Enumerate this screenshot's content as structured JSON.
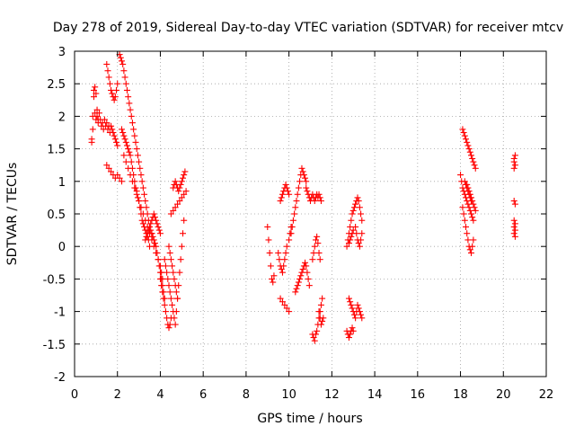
{
  "chart_data": {
    "type": "scatter",
    "title": "Day 278 of 2019, Sidereal Day-to-day VTEC variation (SDTVAR) for receiver mtcv",
    "xlabel": "GPS time / hours",
    "ylabel": "SDTVAR / TECUs",
    "xlim": [
      0,
      22
    ],
    "ylim": [
      -2,
      3
    ],
    "xticks": [
      "0",
      "2",
      "4",
      "6",
      "8",
      "10",
      "12",
      "14",
      "16",
      "18",
      "20",
      "22"
    ],
    "yticks": [
      "3",
      "2.5",
      "2",
      "1.5",
      "1",
      "0.5",
      "0",
      "-0.5",
      "-1",
      "-1.5",
      "-2"
    ],
    "grid": true,
    "marker": "plus",
    "marker_color": "#ff0000",
    "series": [
      {
        "name": "SDTVAR",
        "x": [
          0.8,
          0.85,
          0.9,
          0.95,
          1.0,
          1.05,
          1.1,
          1.15,
          1.2,
          1.25,
          1.3,
          1.35,
          1.4,
          1.45,
          1.5,
          1.55,
          1.6,
          1.65,
          1.7,
          1.75,
          1.8,
          1.85,
          1.9,
          1.95,
          2.0,
          0.8,
          0.85,
          0.9,
          0.95,
          1.0,
          1.05,
          1.1,
          1.5,
          1.55,
          1.6,
          1.65,
          1.7,
          1.75,
          1.8,
          1.85,
          1.9,
          1.95,
          2.0,
          1.5,
          1.6,
          1.7,
          1.8,
          1.9,
          2.0,
          2.1,
          2.2,
          2.1,
          2.15,
          2.2,
          2.25,
          2.3,
          2.35,
          2.4,
          2.45,
          2.5,
          2.55,
          2.6,
          2.65,
          2.7,
          2.75,
          2.8,
          2.85,
          2.9,
          2.95,
          3.0,
          3.05,
          3.1,
          3.15,
          3.2,
          3.25,
          3.3,
          3.35,
          3.4,
          3.45,
          3.5,
          3.55,
          3.6,
          2.2,
          2.25,
          2.3,
          2.35,
          2.4,
          2.45,
          2.5,
          2.55,
          2.6,
          2.65,
          2.7,
          2.75,
          2.8,
          2.85,
          2.9,
          2.95,
          3.0,
          3.05,
          3.1,
          3.15,
          3.2,
          3.25,
          3.3,
          3.35,
          3.4,
          3.45,
          3.5,
          2.3,
          2.4,
          2.5,
          2.6,
          2.7,
          2.8,
          2.9,
          3.0,
          3.1,
          3.2,
          3.3,
          3.4,
          3.5,
          3.6,
          3.7,
          3.8,
          3.9,
          4.0,
          4.05,
          4.1,
          3.3,
          3.35,
          3.4,
          3.45,
          3.5,
          3.55,
          3.6,
          3.65,
          3.7,
          3.75,
          3.8,
          3.85,
          3.9,
          3.95,
          4.0,
          3.6,
          3.65,
          3.7,
          3.75,
          3.8,
          3.85,
          3.9,
          3.95,
          4.0,
          4.05,
          4.1,
          4.15,
          4.2,
          4.0,
          4.05,
          4.1,
          4.15,
          4.2,
          4.25,
          4.3,
          4.35,
          4.4,
          4.45,
          4.5,
          4.2,
          4.25,
          4.3,
          4.35,
          4.4,
          4.45,
          4.5,
          4.55,
          4.6,
          4.65,
          4.7,
          4.75,
          4.8,
          4.4,
          4.45,
          4.5,
          4.55,
          4.6,
          4.65,
          4.7,
          4.75,
          4.8,
          4.85,
          4.9,
          4.95,
          5.0,
          5.05,
          5.1,
          4.6,
          4.65,
          4.7,
          4.75,
          4.8,
          4.85,
          4.9,
          4.95,
          5.0,
          5.05,
          5.1,
          5.15,
          4.5,
          4.6,
          4.7,
          4.8,
          4.9,
          5.0,
          5.1,
          5.2,
          9.0,
          9.05,
          9.1,
          9.15,
          9.2,
          9.25,
          9.3,
          9.6,
          9.65,
          9.7,
          9.75,
          9.8,
          9.85,
          9.9,
          9.95,
          10.0,
          9.5,
          9.55,
          9.6,
          9.65,
          9.7,
          9.75,
          9.8,
          9.85,
          9.9,
          10.0,
          10.05,
          10.1,
          9.6,
          9.7,
          9.8,
          9.9,
          10.0,
          10.1,
          10.15,
          10.2,
          10.25,
          10.3,
          10.35,
          10.4,
          10.45,
          10.5,
          10.55,
          10.6,
          10.65,
          10.7,
          10.75,
          10.8,
          10.3,
          10.35,
          10.4,
          10.45,
          10.5,
          10.55,
          10.6,
          10.65,
          10.7,
          10.75,
          10.8,
          10.85,
          10.9,
          10.95,
          10.8,
          10.85,
          10.9,
          10.95,
          11.0,
          11.05,
          11.1,
          11.15,
          11.2,
          11.25,
          11.3,
          11.35,
          11.4,
          11.45,
          11.5,
          11.1,
          11.15,
          11.2,
          11.25,
          11.3,
          11.35,
          11.4,
          11.45,
          11.5,
          11.55,
          11.1,
          11.15,
          11.2,
          11.25,
          11.3,
          11.35,
          11.4,
          11.45,
          11.4,
          11.45,
          11.5,
          11.55,
          11.6,
          12.7,
          12.75,
          12.8,
          12.85,
          12.9,
          12.95,
          13.0,
          13.05,
          13.1,
          13.15,
          13.2,
          13.25,
          13.3,
          13.35,
          13.4,
          12.8,
          12.85,
          12.9,
          12.95,
          13.0,
          13.05,
          13.1,
          13.15,
          13.2,
          13.25,
          13.3,
          13.35,
          13.4,
          12.7,
          12.75,
          12.8,
          12.85,
          12.9,
          12.95,
          13.0,
          12.8,
          12.85,
          12.9,
          12.95,
          13.0,
          13.1,
          13.15,
          13.2,
          13.25,
          13.3,
          13.35,
          13.4,
          18.1,
          18.15,
          18.2,
          18.25,
          18.3,
          18.35,
          18.4,
          18.45,
          18.5,
          18.55,
          18.6,
          18.65,
          18.7,
          18.0,
          18.05,
          18.1,
          18.15,
          18.2,
          18.25,
          18.3,
          18.35,
          18.4,
          18.45,
          18.5,
          18.55,
          18.6,
          18.1,
          18.15,
          18.2,
          18.25,
          18.3,
          18.35,
          18.4,
          18.45,
          18.5,
          18.55,
          18.6,
          18.2,
          18.25,
          18.3,
          18.35,
          18.4,
          18.45,
          18.5,
          18.3,
          18.35,
          18.4,
          18.45,
          18.5,
          18.55,
          18.6,
          18.65,
          18.7,
          20.5,
          20.5,
          20.55,
          20.5,
          20.55,
          20.5,
          20.55,
          20.5,
          20.55,
          20.5,
          20.55,
          20.5,
          20.55
        ],
        "y": [
          1.65,
          2.0,
          2.4,
          2.05,
          1.95,
          2.0,
          1.9,
          2.05,
          1.95,
          1.85,
          1.9,
          1.8,
          1.95,
          1.85,
          1.9,
          1.8,
          1.85,
          1.75,
          1.85,
          1.8,
          1.75,
          1.7,
          1.65,
          1.6,
          1.55,
          1.6,
          1.8,
          2.3,
          2.45,
          2.35,
          2.1,
          1.95,
          2.8,
          2.7,
          2.6,
          2.5,
          2.4,
          2.35,
          2.3,
          2.25,
          2.3,
          2.4,
          2.5,
          1.25,
          1.2,
          1.15,
          1.1,
          1.05,
          1.1,
          1.05,
          1.0,
          2.95,
          2.9,
          2.85,
          2.8,
          2.7,
          2.6,
          2.5,
          2.4,
          2.3,
          2.2,
          2.1,
          2.0,
          1.9,
          1.8,
          1.7,
          1.6,
          1.5,
          1.4,
          1.3,
          1.2,
          1.1,
          1.0,
          0.9,
          0.8,
          0.7,
          0.6,
          0.5,
          0.4,
          0.3,
          0.25,
          0.2,
          1.8,
          1.75,
          1.7,
          1.65,
          1.6,
          1.55,
          1.5,
          1.45,
          1.4,
          1.3,
          1.2,
          1.1,
          1.0,
          0.9,
          0.8,
          0.75,
          0.7,
          0.6,
          0.5,
          0.4,
          0.35,
          0.3,
          0.25,
          0.2,
          0.15,
          0.1,
          0.0,
          1.4,
          1.3,
          1.2,
          1.1,
          1.0,
          0.9,
          0.85,
          0.7,
          0.6,
          0.5,
          0.4,
          0.3,
          0.2,
          0.1,
          0.0,
          -0.1,
          -0.2,
          -0.3,
          -0.4,
          -0.5,
          0.1,
          0.15,
          0.2,
          0.25,
          0.3,
          0.35,
          0.4,
          0.45,
          0.5,
          0.45,
          0.4,
          0.35,
          0.3,
          0.25,
          0.2,
          0.2,
          0.15,
          0.1,
          0.05,
          0.0,
          -0.1,
          -0.2,
          -0.3,
          -0.4,
          -0.5,
          -0.6,
          -0.7,
          -0.8,
          -0.5,
          -0.6,
          -0.7,
          -0.8,
          -0.9,
          -1.0,
          -1.1,
          -1.2,
          -1.25,
          -1.2,
          -1.1,
          -0.2,
          -0.3,
          -0.4,
          -0.5,
          -0.6,
          -0.7,
          -0.8,
          -0.9,
          -1.0,
          -1.1,
          -1.2,
          -1.0,
          -0.8,
          0.0,
          -0.1,
          -0.2,
          -0.3,
          -0.4,
          -0.5,
          -0.6,
          -0.7,
          -0.8,
          -0.6,
          -0.4,
          -0.2,
          0.0,
          0.2,
          0.4,
          0.9,
          0.95,
          1.0,
          0.95,
          0.9,
          0.85,
          0.9,
          0.95,
          1.0,
          1.05,
          1.1,
          1.15,
          0.5,
          0.55,
          0.6,
          0.65,
          0.7,
          0.75,
          0.8,
          0.85,
          0.3,
          0.1,
          -0.1,
          -0.3,
          -0.5,
          -0.55,
          -0.45,
          0.7,
          0.75,
          0.8,
          0.85,
          0.9,
          0.95,
          0.9,
          0.85,
          0.8,
          -0.1,
          -0.2,
          -0.3,
          -0.35,
          -0.4,
          -0.3,
          -0.2,
          -0.1,
          0.0,
          0.1,
          0.2,
          0.3,
          -0.8,
          -0.85,
          -0.9,
          -0.95,
          -1.0,
          0.2,
          0.3,
          0.4,
          0.5,
          0.6,
          0.7,
          0.8,
          0.9,
          1.0,
          1.1,
          1.2,
          1.15,
          1.1,
          1.05,
          1.0,
          -0.7,
          -0.65,
          -0.6,
          -0.55,
          -0.5,
          -0.45,
          -0.4,
          -0.35,
          -0.3,
          -0.25,
          -0.3,
          -0.4,
          -0.5,
          -0.6,
          0.9,
          0.85,
          0.8,
          0.75,
          0.7,
          0.75,
          0.8,
          0.75,
          0.7,
          0.75,
          0.8,
          0.75,
          0.8,
          0.75,
          0.7,
          -1.35,
          -1.4,
          -1.45,
          -1.35,
          -1.3,
          -1.2,
          -1.1,
          -1.0,
          -0.9,
          -0.8,
          -0.2,
          -0.1,
          0.0,
          0.1,
          0.15,
          0.05,
          -0.1,
          -0.2,
          -1.0,
          -1.1,
          -1.2,
          -1.15,
          -1.1,
          0.0,
          0.1,
          0.2,
          0.3,
          0.4,
          0.5,
          0.55,
          0.6,
          0.65,
          0.7,
          0.75,
          0.7,
          0.6,
          0.5,
          0.4,
          -0.8,
          -0.85,
          -0.9,
          -0.95,
          -1.0,
          -1.05,
          -1.1,
          -1.0,
          -0.9,
          -0.95,
          -1.0,
          -1.05,
          -1.1,
          -1.3,
          -1.35,
          -1.4,
          -1.35,
          -1.3,
          -1.25,
          -1.3,
          0.05,
          0.1,
          0.15,
          0.2,
          0.25,
          0.3,
          0.2,
          0.1,
          0.05,
          0.0,
          0.1,
          0.2,
          1.8,
          1.75,
          1.7,
          1.65,
          1.6,
          1.55,
          1.5,
          1.45,
          1.4,
          1.35,
          1.3,
          1.25,
          1.2,
          1.1,
          1.0,
          0.9,
          0.85,
          0.8,
          0.75,
          0.7,
          0.65,
          0.6,
          0.55,
          0.5,
          0.45,
          0.4,
          0.6,
          0.5,
          0.4,
          0.3,
          0.2,
          0.1,
          0.0,
          -0.05,
          -0.1,
          0.0,
          0.1,
          1.0,
          0.95,
          0.9,
          0.85,
          0.8,
          0.75,
          0.7,
          0.95,
          0.9,
          0.85,
          0.8,
          0.75,
          0.7,
          0.65,
          0.6,
          0.55,
          1.3,
          1.2,
          1.4,
          0.7,
          0.65,
          0.4,
          0.35,
          0.3,
          0.25,
          0.2,
          0.15,
          1.35,
          1.25
        ]
      }
    ]
  }
}
